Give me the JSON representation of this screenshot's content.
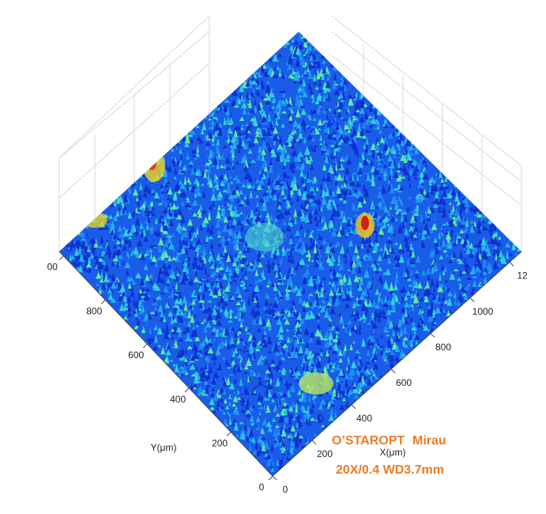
{
  "chart_data": {
    "type": "surface3d",
    "xlabel": "X(μm)",
    "ylabel": "Y(μm)",
    "xlim": [
      0,
      1260
    ],
    "ylim": [
      0,
      1020
    ],
    "xticks": [
      0,
      200,
      400,
      600,
      800,
      1000,
      {
        "value": 1200,
        "label": "12"
      }
    ],
    "yticks": [
      0,
      200,
      400,
      600,
      800,
      {
        "value": 1000,
        "label": "00"
      }
    ],
    "colormap": [
      "#1030d0",
      "#1a5cf0",
      "#1e8cf5",
      "#22b0f0",
      "#30d0e0",
      "#60e8a0"
    ],
    "annotations": [
      "O’STAROPT",
      "Mirau",
      "20X/0.4 WD3.7mm"
    ]
  }
}
